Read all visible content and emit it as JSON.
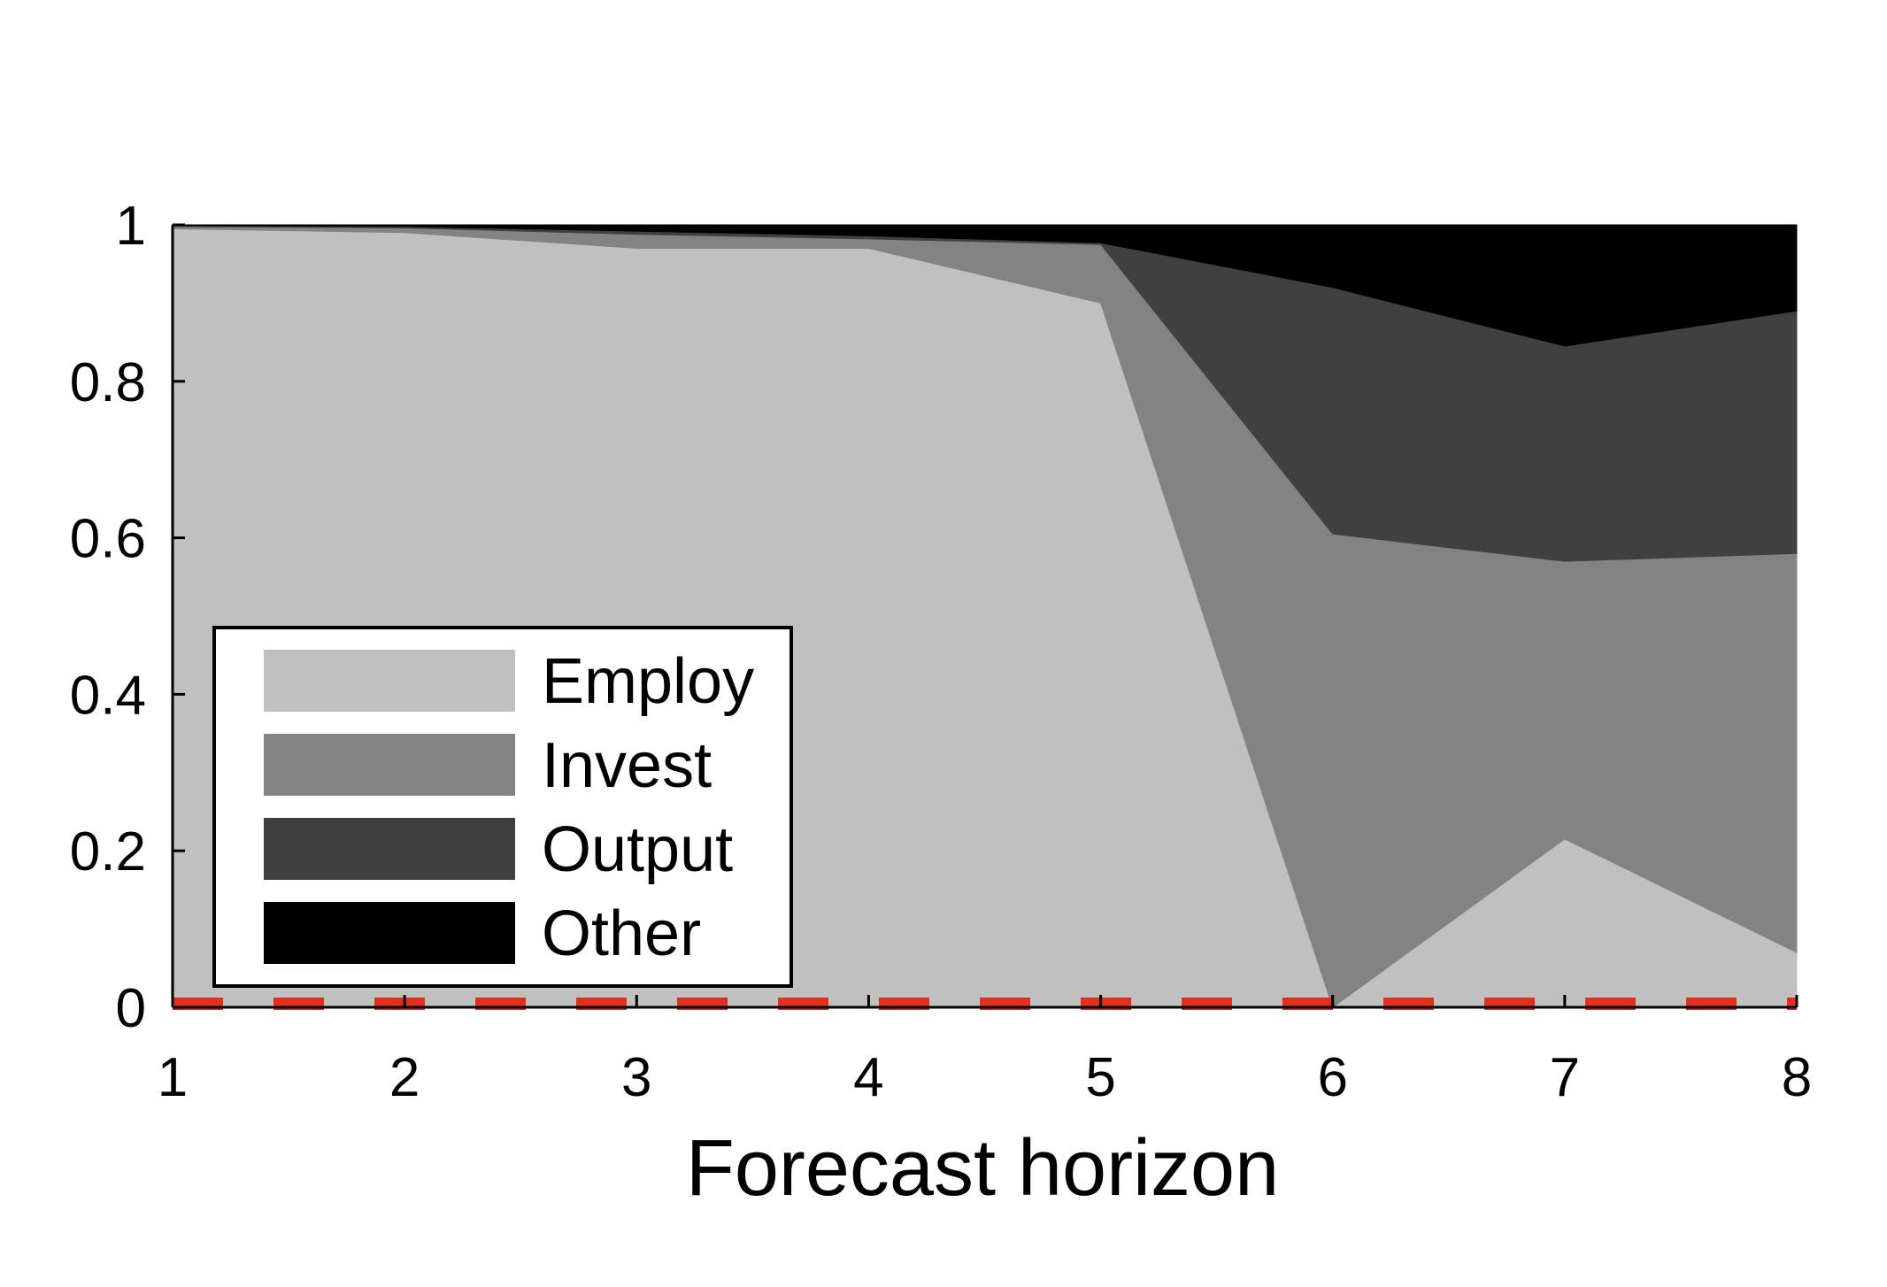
{
  "chart_data": {
    "type": "area",
    "stacked": true,
    "xlabel": "Forecast horizon",
    "ylabel": "",
    "x": [
      1,
      2,
      3,
      4,
      5,
      6,
      7,
      8
    ],
    "xlim": [
      1,
      8
    ],
    "ylim": [
      0,
      1
    ],
    "x_ticks": [
      "1",
      "2",
      "3",
      "4",
      "5",
      "6",
      "7",
      "8"
    ],
    "y_ticks": [
      "0",
      "0.2",
      "0.4",
      "0.6",
      "0.8",
      "1"
    ],
    "x_tick_values": [
      1,
      2,
      3,
      4,
      5,
      6,
      7,
      8
    ],
    "y_tick_values": [
      0,
      0.2,
      0.4,
      0.6,
      0.8,
      1
    ],
    "series": [
      {
        "name": "Employ",
        "color": "#c0c0c0",
        "values": [
          0.995,
          0.99,
          0.97,
          0.97,
          0.9,
          0.0,
          0.215,
          0.07
        ]
      },
      {
        "name": "Invest",
        "color": "#838383",
        "values": [
          0.003,
          0.006,
          0.018,
          0.012,
          0.075,
          0.605,
          0.355,
          0.51
        ]
      },
      {
        "name": "Output",
        "color": "#404040",
        "values": [
          0.001,
          0.002,
          0.004,
          0.004,
          0.002,
          0.315,
          0.275,
          0.31
        ]
      },
      {
        "name": "Other",
        "color": "#000000",
        "values": [
          0.001,
          0.002,
          0.008,
          0.014,
          0.023,
          0.08,
          0.155,
          0.11
        ]
      }
    ],
    "reference_line": {
      "y": 0.0,
      "style": "dashed",
      "color": "#e03020"
    },
    "grid": false,
    "legend_position": "lower-left"
  }
}
